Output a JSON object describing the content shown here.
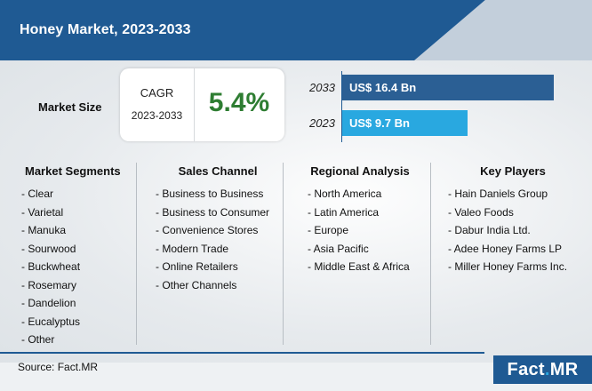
{
  "header": {
    "title": "Honey Market, 2023-2033"
  },
  "market_size": {
    "label": "Market Size",
    "cagr_label": "CAGR",
    "cagr_period": "2023-2033",
    "cagr_value": "5.4%"
  },
  "chart_data": {
    "type": "bar",
    "orientation": "horizontal",
    "categories": [
      "2033",
      "2023"
    ],
    "values": [
      16.4,
      9.7
    ],
    "value_labels": [
      "US$ 16.4 Bn",
      "US$ 9.7 Bn"
    ],
    "unit": "US$ Bn",
    "colors": [
      "#2b5f94",
      "#29a8e0"
    ],
    "grid": false
  },
  "columns": [
    {
      "title": "Market Segments",
      "items": [
        "- Clear",
        "- Varietal",
        "- Manuka",
        "- Sourwood",
        "- Buckwheat",
        "- Rosemary",
        "- Dandelion",
        "- Eucalyptus",
        "- Other"
      ]
    },
    {
      "title": "Sales Channel",
      "items": [
        "- Business to Business",
        "- Business to Consumer",
        "- Convenience Stores",
        "- Modern Trade",
        "- Online Retailers",
        "- Other Channels"
      ]
    },
    {
      "title": "Regional Analysis",
      "items": [
        "- North America",
        "- Latin America",
        "- Europe",
        "- Asia Pacific",
        "- Middle East & Africa"
      ]
    },
    {
      "title": "Key Players",
      "items": [
        "- Hain Daniels Group",
        "- Valeo Foods",
        "- Dabur India Ltd.",
        "- Adee Honey Farms LP",
        "- Miller Honey Farms Inc."
      ]
    }
  ],
  "footer": {
    "source": "Source: Fact.MR",
    "logo_main": "Fact",
    "logo_dot": ".",
    "logo_tail": "MR"
  },
  "colors": {
    "brand_blue": "#1f5a93",
    "accent_cyan": "#29a8e0",
    "cagr_green": "#2e7d32"
  }
}
